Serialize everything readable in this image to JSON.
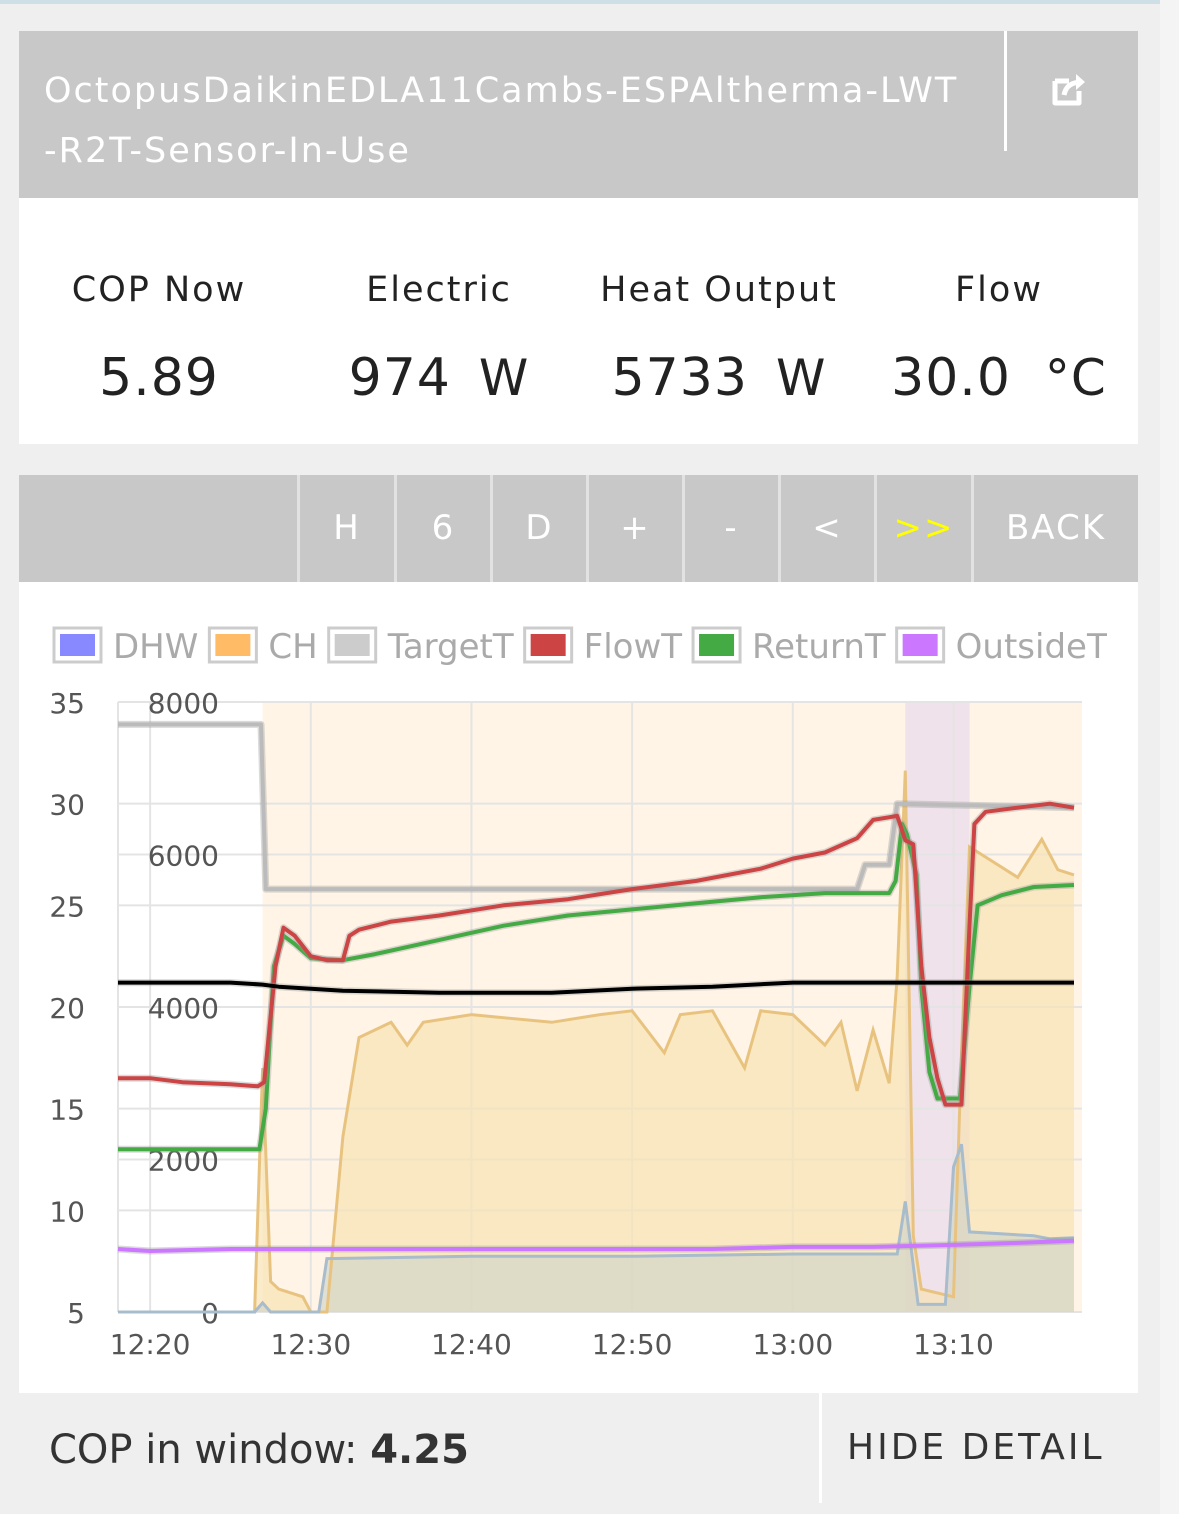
{
  "header": {
    "title": "OctopusDaikinEDLA11Cambs-ESPAltherma-LWT-R2T-Sensor-In-Use",
    "share_icon": "share-icon"
  },
  "stats": {
    "cop": {
      "label": "COP Now",
      "value": "5.89",
      "unit": ""
    },
    "electric": {
      "label": "Electric",
      "value": "974",
      "unit": "W"
    },
    "heat": {
      "label": "Heat Output",
      "value": "5733",
      "unit": "W"
    },
    "flow": {
      "label": "Flow",
      "value": "30.0",
      "unit": "°C"
    }
  },
  "toolbar": {
    "buttons": [
      {
        "label": "H",
        "color": "#ffffff"
      },
      {
        "label": "6",
        "color": "#ffffff"
      },
      {
        "label": "D",
        "color": "#ffffff"
      },
      {
        "label": "+",
        "color": "#ffffff"
      },
      {
        "label": "-",
        "color": "#ffffff"
      },
      {
        "label": "<",
        "color": "#ffffff"
      },
      {
        "label": ">>",
        "color": "#ffff00"
      },
      {
        "label": "BACK",
        "color": "#ffffff"
      }
    ]
  },
  "footer": {
    "cop_window_label": "COP in window:",
    "cop_window_value": "4.25",
    "hide_detail_label": "HIDE DETAIL"
  },
  "chart_data": {
    "type": "line",
    "legend": [
      {
        "name": "DHW",
        "color": "#8888ff"
      },
      {
        "name": "CH",
        "color": "#ffbb66"
      },
      {
        "name": "TargetT",
        "color": "#cccccc"
      },
      {
        "name": "FlowT",
        "color": "#cc4444"
      },
      {
        "name": "ReturnT",
        "color": "#44aa44"
      },
      {
        "name": "OutsideT",
        "color": "#cc77ff"
      }
    ],
    "legend_placement": "top",
    "x_ticks": [
      "12:20",
      "12:30",
      "12:40",
      "12:50",
      "13:00",
      "13:10"
    ],
    "x_range": [
      "12:18",
      "13:18"
    ],
    "y_left": {
      "min": 5,
      "max": 35,
      "ticks": [
        5,
        10,
        15,
        20,
        25,
        30,
        35
      ],
      "unit": "°C"
    },
    "y_right": {
      "min": 0,
      "max": 8000,
      "ticks": [
        0,
        2000,
        4000,
        6000,
        8000
      ],
      "unit": "W"
    },
    "grid": true,
    "ch_region": [
      "12:27",
      "13:18"
    ],
    "dhw_region": [
      "13:07",
      "13:11"
    ],
    "series": [
      {
        "name": "TargetT",
        "axis": "left",
        "color": "#bbbbbb",
        "points": [
          [
            "12:18",
            33.9
          ],
          [
            "12:26.9",
            33.9
          ],
          [
            "12:27.2",
            25.8
          ],
          [
            "13:04",
            25.8
          ],
          [
            "13:04.5",
            27.0
          ],
          [
            "13:06",
            27.0
          ],
          [
            "13:06.5",
            30.0
          ],
          [
            "13:17.5",
            29.8
          ]
        ]
      },
      {
        "name": "FlowT",
        "axis": "left",
        "color": "#cc4444",
        "points": [
          [
            "12:18",
            16.5
          ],
          [
            "12:20",
            16.5
          ],
          [
            "12:22",
            16.3
          ],
          [
            "12:25",
            16.2
          ],
          [
            "12:26.7",
            16.1
          ],
          [
            "12:27.1",
            16.3
          ],
          [
            "12:27.8",
            22.0
          ],
          [
            "12:28.3",
            23.9
          ],
          [
            "12:29",
            23.5
          ],
          [
            "12:30",
            22.5
          ],
          [
            "12:31",
            22.3
          ],
          [
            "12:32",
            22.3
          ],
          [
            "12:32.4",
            23.5
          ],
          [
            "12:33",
            23.8
          ],
          [
            "12:35",
            24.2
          ],
          [
            "12:38",
            24.5
          ],
          [
            "12:42",
            25.0
          ],
          [
            "12:46",
            25.3
          ],
          [
            "12:50",
            25.8
          ],
          [
            "12:54",
            26.2
          ],
          [
            "12:58",
            26.8
          ],
          [
            "13:00",
            27.3
          ],
          [
            "13:02",
            27.6
          ],
          [
            "13:04",
            28.3
          ],
          [
            "13:05",
            29.2
          ],
          [
            "13:06.5",
            29.4
          ],
          [
            "13:07",
            28.2
          ],
          [
            "13:07.5",
            28.0
          ],
          [
            "13:08",
            22.0
          ],
          [
            "13:08.5",
            18.5
          ],
          [
            "13:09",
            16.5
          ],
          [
            "13:09.5",
            15.2
          ],
          [
            "13:10.5",
            15.2
          ],
          [
            "13:11",
            24.0
          ],
          [
            "13:11.3",
            29.0
          ],
          [
            "13:12",
            29.6
          ],
          [
            "13:14",
            29.8
          ],
          [
            "13:16",
            30.0
          ],
          [
            "13:17.5",
            29.8
          ]
        ]
      },
      {
        "name": "ReturnT",
        "axis": "left",
        "color": "#44aa44",
        "points": [
          [
            "12:18",
            13.0
          ],
          [
            "12:26.8",
            13.0
          ],
          [
            "12:27.2",
            15.0
          ],
          [
            "12:27.7",
            22.0
          ],
          [
            "12:28.3",
            23.5
          ],
          [
            "12:29",
            23.1
          ],
          [
            "12:30",
            22.4
          ],
          [
            "12:32",
            22.3
          ],
          [
            "12:34",
            22.6
          ],
          [
            "12:38",
            23.3
          ],
          [
            "12:42",
            24.0
          ],
          [
            "12:46",
            24.5
          ],
          [
            "12:50",
            24.8
          ],
          [
            "12:54",
            25.1
          ],
          [
            "12:58",
            25.4
          ],
          [
            "13:02",
            25.6
          ],
          [
            "13:06",
            25.6
          ],
          [
            "13:06.4",
            26.2
          ],
          [
            "13:06.8",
            29.0
          ],
          [
            "13:07.1",
            28.5
          ],
          [
            "13:07.7",
            26.5
          ],
          [
            "13:08",
            21.0
          ],
          [
            "13:08.5",
            16.8
          ],
          [
            "13:09",
            15.5
          ],
          [
            "13:10.4",
            15.5
          ],
          [
            "13:11",
            21.0
          ],
          [
            "13:11.5",
            25.0
          ],
          [
            "13:13",
            25.5
          ],
          [
            "13:15",
            25.9
          ],
          [
            "13:17.5",
            26.0
          ]
        ]
      },
      {
        "name": "OutsideT",
        "axis": "left",
        "color": "#cc77ff",
        "points": [
          [
            "12:18",
            8.1
          ],
          [
            "12:20",
            8.0
          ],
          [
            "12:25",
            8.1
          ],
          [
            "12:40",
            8.1
          ],
          [
            "12:55",
            8.1
          ],
          [
            "13:00",
            8.2
          ],
          [
            "13:05",
            8.2
          ],
          [
            "13:10",
            8.3
          ],
          [
            "13:14",
            8.4
          ],
          [
            "13:17.5",
            8.5
          ]
        ]
      },
      {
        "name": "Electric",
        "axis": "right",
        "color": "#aabbcc",
        "points": [
          [
            "12:18",
            0
          ],
          [
            "12:26.5",
            0
          ],
          [
            "12:27",
            120
          ],
          [
            "12:27.5",
            0
          ],
          [
            "12:30.5",
            0
          ],
          [
            "12:31",
            700
          ],
          [
            "12:40",
            730
          ],
          [
            "12:50",
            730
          ],
          [
            "13:00",
            760
          ],
          [
            "13:06.5",
            760
          ],
          [
            "13:07",
            1450
          ],
          [
            "13:07.8",
            100
          ],
          [
            "13:09.5",
            100
          ],
          [
            "13:10",
            1900
          ],
          [
            "13:10.5",
            2200
          ],
          [
            "13:11",
            1050
          ],
          [
            "13:15",
            1000
          ],
          [
            "13:16",
            960
          ],
          [
            "13:17.5",
            974
          ]
        ]
      },
      {
        "name": "Heat",
        "axis": "right",
        "color": "#e8c380",
        "points": [
          [
            "12:18",
            0
          ],
          [
            "12:26.5",
            0
          ],
          [
            "12:27",
            3200
          ],
          [
            "12:27.5",
            400
          ],
          [
            "12:28",
            300
          ],
          [
            "12:29.5",
            200
          ],
          [
            "12:30",
            0
          ],
          [
            "12:31",
            0
          ],
          [
            "12:32",
            2300
          ],
          [
            "12:33",
            3600
          ],
          [
            "12:34",
            3700
          ],
          [
            "12:35",
            3800
          ],
          [
            "12:36",
            3500
          ],
          [
            "12:37",
            3800
          ],
          [
            "12:40",
            3900
          ],
          [
            "12:45",
            3800
          ],
          [
            "12:48",
            3900
          ],
          [
            "12:50",
            3950
          ],
          [
            "12:52",
            3400
          ],
          [
            "12:53",
            3900
          ],
          [
            "12:55",
            3950
          ],
          [
            "12:57",
            3200
          ],
          [
            "12:58",
            3950
          ],
          [
            "13:00",
            3900
          ],
          [
            "13:02",
            3500
          ],
          [
            "13:03",
            3800
          ],
          [
            "13:04",
            2900
          ],
          [
            "13:05",
            3700
          ],
          [
            "13:06",
            3000
          ],
          [
            "13:06.5",
            4400
          ],
          [
            "13:07",
            7100
          ],
          [
            "13:07.5",
            1000
          ],
          [
            "13:08",
            300
          ],
          [
            "13:10",
            200
          ],
          [
            "13:10.5",
            3400
          ],
          [
            "13:11",
            6100
          ],
          [
            "13:14",
            5700
          ],
          [
            "13:15.5",
            6200
          ],
          [
            "13:16.5",
            5800
          ],
          [
            "13:17.5",
            5733
          ]
        ]
      },
      {
        "name": "COP",
        "axis": "left",
        "color": "#000000",
        "points": [
          [
            "12:18",
            21.2
          ],
          [
            "12:25",
            21.2
          ],
          [
            "12:27",
            21.1
          ],
          [
            "12:28",
            21.0
          ],
          [
            "12:30",
            20.9
          ],
          [
            "12:32",
            20.8
          ],
          [
            "12:38",
            20.7
          ],
          [
            "12:45",
            20.7
          ],
          [
            "12:50",
            20.9
          ],
          [
            "12:55",
            21.0
          ],
          [
            "13:00",
            21.2
          ],
          [
            "13:10",
            21.2
          ],
          [
            "13:17.5",
            21.2
          ]
        ]
      }
    ]
  }
}
